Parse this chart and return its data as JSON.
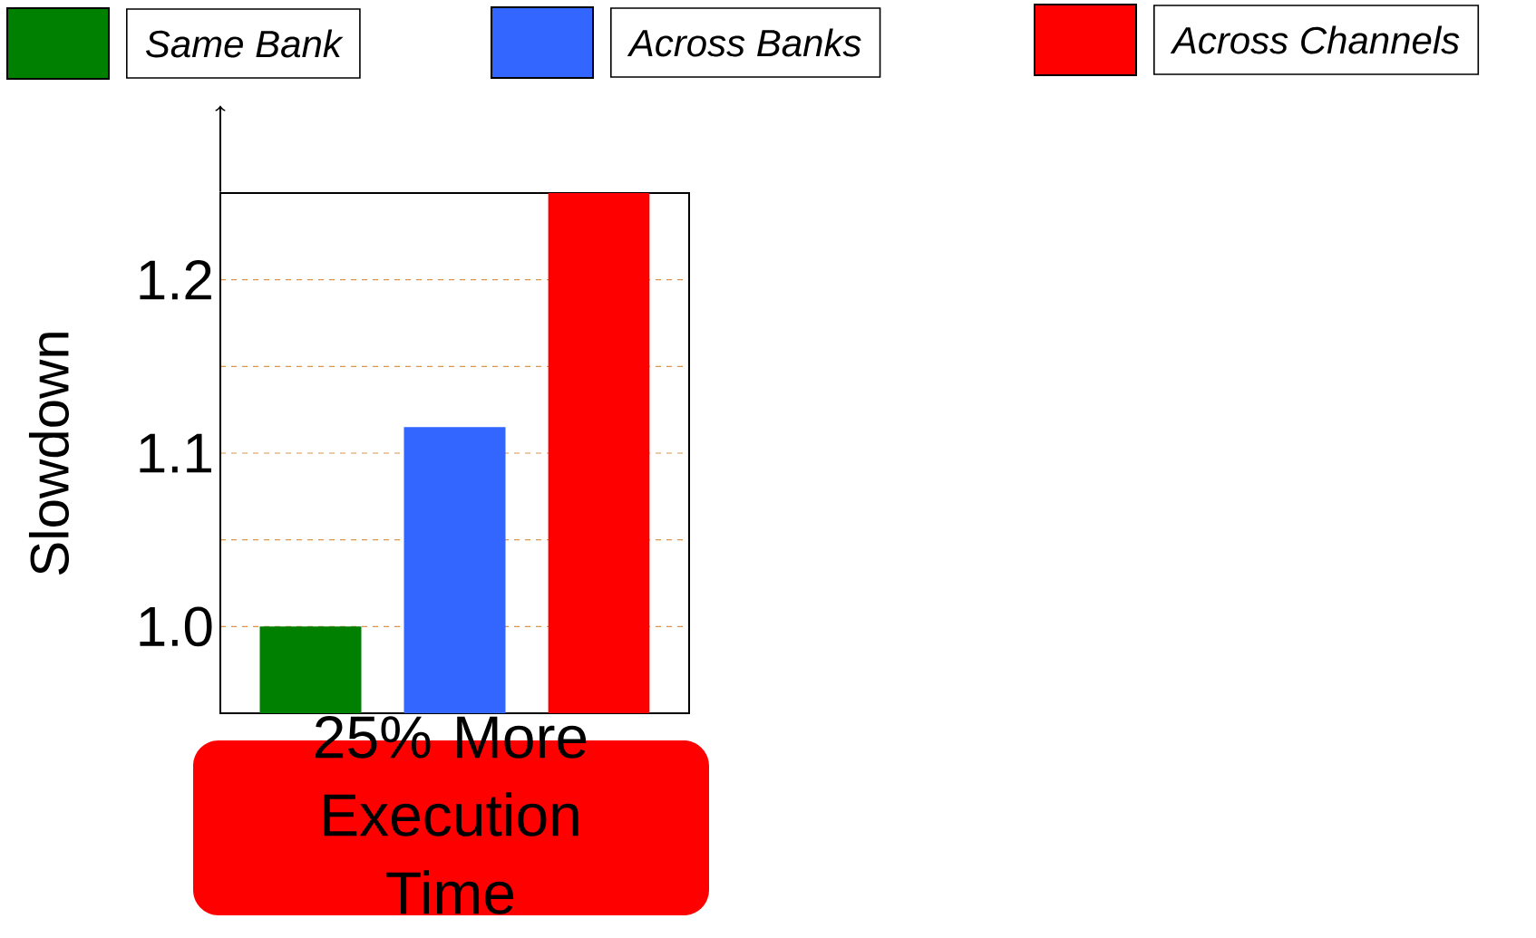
{
  "chart_data": {
    "type": "bar",
    "ylabel": "Slowdown",
    "categories": [
      null
    ],
    "series": [
      {
        "name": "Same Bank",
        "color": "#008000",
        "values": [
          1.0
        ]
      },
      {
        "name": "Across Banks",
        "color": "#3366ff",
        "values": [
          1.115
        ]
      },
      {
        "name": "Across Channels",
        "color": "#ff0000",
        "values": [
          1.25
        ]
      }
    ],
    "ylim": [
      0.95,
      1.25
    ],
    "yticks": [
      {
        "value": 1.0,
        "label": "1.0"
      },
      {
        "value": 1.05,
        "label": null
      },
      {
        "value": 1.1,
        "label": "1.1"
      },
      {
        "value": 1.15,
        "label": null
      },
      {
        "value": 1.2,
        "label": "1.2"
      }
    ],
    "grid": "y",
    "legend": "top",
    "tick_labels": "y",
    "annotations": [
      "25% More Execution Time"
    ]
  }
}
